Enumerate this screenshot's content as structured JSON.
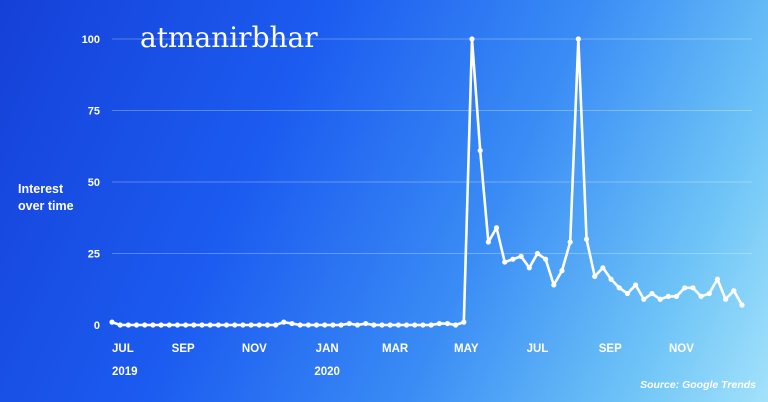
{
  "chart_data": {
    "type": "line",
    "title": "atmanirbhar",
    "ylabel_lines": [
      "Interest",
      "over time"
    ],
    "source": "Source: Google Trends",
    "ylim": [
      0,
      100
    ],
    "yticks": [
      0,
      25,
      50,
      75,
      100
    ],
    "grid": true,
    "x_tick_labels": [
      {
        "label": "JUL",
        "week": 0
      },
      {
        "label": "SEP",
        "week": 8.7
      },
      {
        "label": "NOV",
        "week": 17.4
      },
      {
        "label": "JAN",
        "week": 26.3
      },
      {
        "label": "MAR",
        "week": 34.6
      },
      {
        "label": "MAY",
        "week": 43.3
      },
      {
        "label": "JUL",
        "week": 52
      },
      {
        "label": "SEP",
        "week": 60.9
      },
      {
        "label": "NOV",
        "week": 69.6
      }
    ],
    "year_labels": [
      {
        "label": "2019",
        "week": 0
      },
      {
        "label": "2020",
        "week": 26.3
      }
    ],
    "series": [
      {
        "values": [
          1,
          0,
          0,
          0,
          0,
          0,
          0,
          0,
          0,
          0,
          0,
          0,
          0,
          0,
          0,
          0,
          0,
          0,
          0,
          0,
          0,
          1,
          0.5,
          0,
          0,
          0,
          0,
          0,
          0,
          0.5,
          0,
          0.5,
          0,
          0,
          0,
          0,
          0,
          0,
          0,
          0,
          0.5,
          0.5,
          0,
          1,
          100,
          61,
          29,
          34,
          22,
          23,
          24,
          20,
          25,
          23,
          14,
          19,
          29,
          100,
          30,
          17,
          20,
          16,
          13,
          11,
          14,
          9,
          11,
          9,
          10,
          10,
          13,
          13,
          10,
          11,
          16,
          9,
          12,
          7
        ]
      }
    ],
    "colors": {
      "line": "#ffffff",
      "grid": "#ffffff"
    }
  }
}
